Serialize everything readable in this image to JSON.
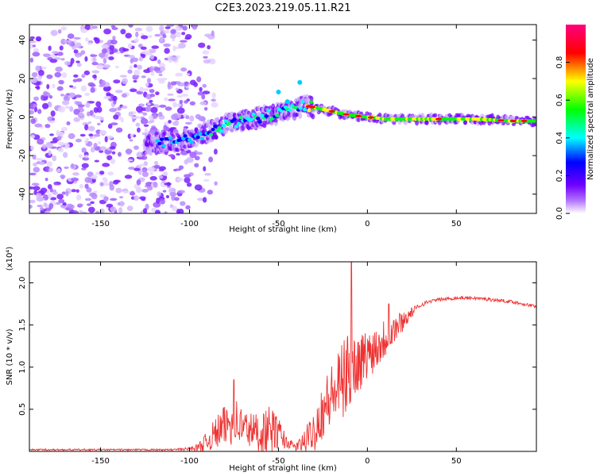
{
  "title": "C2E3.2023.219.05.11.R21",
  "chart_data": [
    {
      "type": "heatmap",
      "xlabel": "Height of straight line (km)",
      "ylabel": "Frequency (Hz)",
      "xlim": [
        -190,
        95
      ],
      "ylim": [
        -50,
        48
      ],
      "x_ticks": [
        "-150",
        "-100",
        "-50",
        "0",
        "50"
      ],
      "y_ticks": [
        "40",
        "20",
        "0",
        "-20",
        "-40"
      ],
      "colorbar": {
        "label": "Normalized spectral amplitude",
        "range": [
          0,
          1
        ],
        "ticks": [
          "0.0",
          "0.2",
          "0.4",
          "0.6",
          "0.8"
        ],
        "colors": [
          "#ffffff",
          "#b070ff",
          "#7000ff",
          "#0000ff",
          "#00ffff",
          "#00ff00",
          "#ffff00",
          "#ff0000",
          "#ff0080"
        ]
      },
      "ridge": {
        "x": [
          -120,
          -110,
          -100,
          -90,
          -80,
          -70,
          -60,
          -50,
          -40,
          -35,
          -30,
          -20,
          -10,
          0,
          10,
          20,
          40,
          60,
          80,
          95
        ],
        "frequency_hz": [
          -14,
          -13,
          -11,
          -8,
          -4,
          -2,
          0,
          2,
          4,
          6,
          5,
          3,
          1,
          0,
          -1,
          -1,
          -1,
          -1,
          -2,
          -2
        ]
      },
      "noise_region_x": [
        -190,
        -100
      ],
      "grid": false
    },
    {
      "type": "line",
      "xlabel": "Height of straight line (km)",
      "ylabel": "SNR (10 * v/v)",
      "y_multiplier": "(x10⁴)",
      "xlim": [
        -190,
        95
      ],
      "ylim": [
        0,
        2.25
      ],
      "x_ticks": [
        "-150",
        "-100",
        "-50",
        "0",
        "50"
      ],
      "y_ticks": [
        "0.5",
        "1.0",
        "1.5",
        "2.0"
      ],
      "color": "#ee3333",
      "envelope": {
        "x": [
          -190,
          -110,
          -100,
          -95,
          -90,
          -85,
          -80,
          -75,
          -70,
          -65,
          -60,
          -55,
          -50,
          -45,
          -40,
          -35,
          -30,
          -25,
          -20,
          -15,
          -10,
          -5,
          0,
          5,
          10,
          15,
          20,
          25,
          30,
          35,
          40,
          50,
          60,
          70,
          80,
          95
        ],
        "mean": [
          0.02,
          0.02,
          0.03,
          0.05,
          0.12,
          0.22,
          0.3,
          0.38,
          0.28,
          0.25,
          0.22,
          0.26,
          0.22,
          0.1,
          0.05,
          0.12,
          0.25,
          0.5,
          0.65,
          0.8,
          0.95,
          1.05,
          1.15,
          1.25,
          1.35,
          1.45,
          1.55,
          1.65,
          1.74,
          1.78,
          1.8,
          1.82,
          1.82,
          1.8,
          1.78,
          1.72
        ],
        "amplitude": [
          0.01,
          0.01,
          0.02,
          0.05,
          0.12,
          0.2,
          0.25,
          0.3,
          0.25,
          0.22,
          0.25,
          0.28,
          0.2,
          0.06,
          0.05,
          0.15,
          0.25,
          0.35,
          0.4,
          0.45,
          0.5,
          0.35,
          0.3,
          0.28,
          0.25,
          0.2,
          0.12,
          0.06,
          0.03,
          0.02,
          0.02,
          0.02,
          0.02,
          0.02,
          0.02,
          0.02
        ]
      },
      "peaks": [
        {
          "x": -75,
          "y": 0.85
        },
        {
          "x": -9,
          "y": 2.25
        },
        {
          "x": 12,
          "y": 1.75
        }
      ],
      "grid": false
    }
  ]
}
